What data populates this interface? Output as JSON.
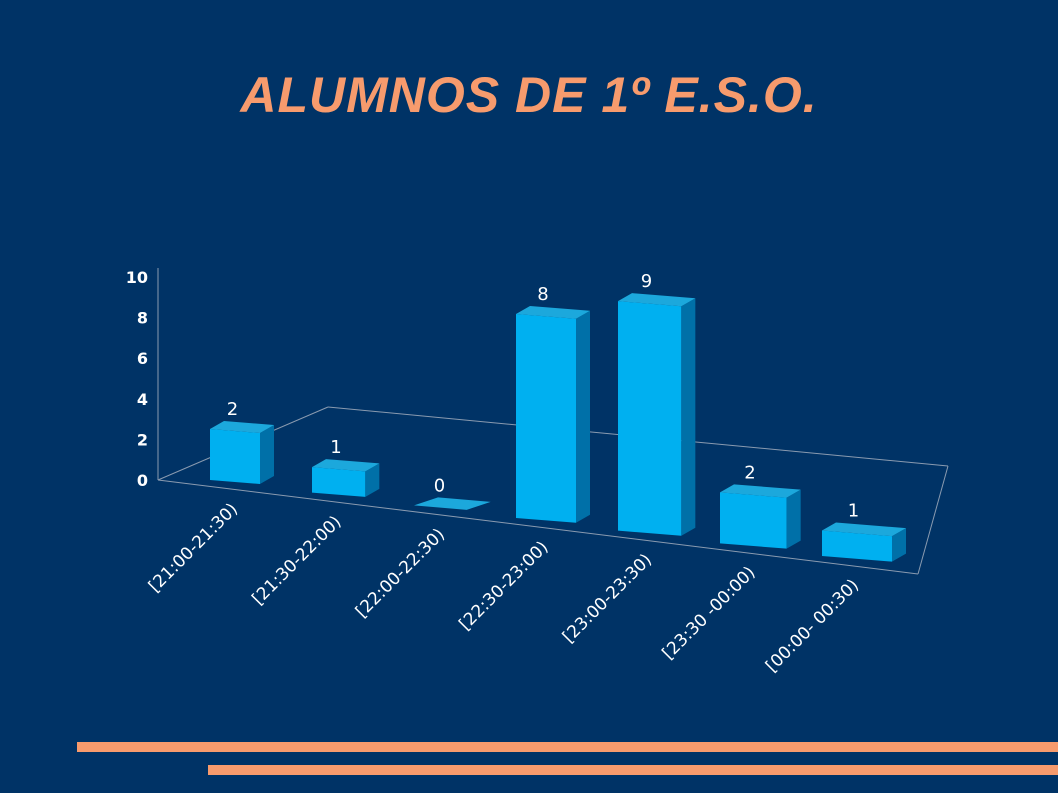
{
  "slide": {
    "title": "ALUMNOS DE 1º E.S.O."
  },
  "colors": {
    "background": "#003366",
    "title": "#f79b6d",
    "bar_front": "#00b0f0",
    "bar_top": "#1ca8dc",
    "bar_side": "#0070a8",
    "axis": "#8a9bb0",
    "stripe": "#f79b6d"
  },
  "chart_data": {
    "type": "bar",
    "style": "3d-perspective",
    "title": "",
    "xlabel": "",
    "ylabel": "",
    "categories": [
      "[21:00-21:30)",
      "[21:30-22:00)",
      "[22:00-22:30)",
      "[22:30-23:00)",
      "[23:00-23:30)",
      "[23:30 -00:00)",
      "[00:00- 00:30)"
    ],
    "values": [
      2,
      1,
      0,
      8,
      9,
      2,
      1
    ],
    "data_labels": [
      "2",
      "1",
      "0",
      "8",
      "9",
      "2",
      "1"
    ],
    "y_ticks": [
      "0",
      "2",
      "4",
      "6",
      "8",
      "10"
    ],
    "ylim": [
      0,
      10
    ],
    "grid": false,
    "legend": "none"
  }
}
